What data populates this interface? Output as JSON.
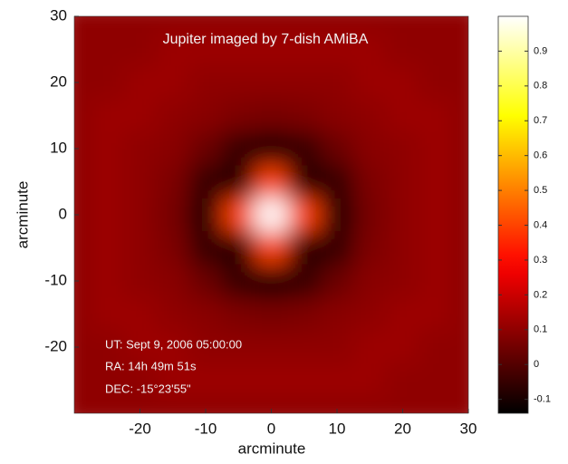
{
  "chart_data": {
    "type": "heatmap",
    "title": "Jupiter imaged by 7-dish AMiBA",
    "x_label": "arcminute",
    "y_label": "arcminute",
    "annotations": [
      "UT: Sept 9, 2006  05:00:00",
      "RA: 14h 49m 51s",
      "DEC: -15°23'55\""
    ],
    "colormap": "hot",
    "x": [
      -30,
      -25,
      -20,
      -15,
      -10,
      -5,
      0,
      5,
      10,
      15,
      20,
      25,
      30
    ],
    "y": [
      30,
      25,
      20,
      15,
      10,
      5,
      0,
      -5,
      -10,
      -15,
      -20,
      -25,
      -30
    ],
    "z": [
      [
        0.1,
        0.1,
        0.1,
        0.1,
        0.1,
        0.1,
        0.1,
        0.1,
        0.1,
        0.1,
        0.1,
        0.1,
        0.1
      ],
      [
        0.1,
        0.1,
        0.1,
        0.12,
        0.12,
        0.12,
        0.12,
        0.12,
        0.12,
        0.12,
        0.1,
        0.1,
        0.1
      ],
      [
        0.1,
        0.1,
        0.12,
        0.12,
        0.1,
        0.1,
        0.1,
        0.1,
        0.1,
        0.12,
        0.12,
        0.1,
        0.1
      ],
      [
        0.1,
        0.12,
        0.12,
        0.1,
        0.09,
        0.07,
        0.06,
        0.07,
        0.09,
        0.1,
        0.12,
        0.12,
        0.1
      ],
      [
        0.1,
        0.12,
        0.1,
        0.09,
        0.04,
        -0.05,
        -0.1,
        -0.05,
        0.04,
        0.09,
        0.1,
        0.12,
        0.1
      ],
      [
        0.1,
        0.12,
        0.1,
        0.07,
        -0.05,
        -0.08,
        0.4,
        -0.08,
        -0.05,
        0.07,
        0.1,
        0.12,
        0.1
      ],
      [
        0.1,
        0.12,
        0.1,
        0.06,
        -0.1,
        0.4,
        1.0,
        0.4,
        -0.1,
        0.06,
        0.1,
        0.12,
        0.1
      ],
      [
        0.1,
        0.12,
        0.1,
        0.07,
        -0.05,
        -0.08,
        0.4,
        -0.08,
        -0.05,
        0.07,
        0.1,
        0.12,
        0.1
      ],
      [
        0.1,
        0.12,
        0.1,
        0.09,
        0.04,
        -0.05,
        -0.1,
        -0.05,
        0.04,
        0.09,
        0.1,
        0.12,
        0.1
      ],
      [
        0.1,
        0.12,
        0.12,
        0.1,
        0.09,
        0.07,
        0.06,
        0.07,
        0.09,
        0.1,
        0.12,
        0.12,
        0.1
      ],
      [
        0.1,
        0.1,
        0.12,
        0.12,
        0.1,
        0.1,
        0.1,
        0.1,
        0.1,
        0.12,
        0.12,
        0.1,
        0.1
      ],
      [
        0.1,
        0.1,
        0.1,
        0.12,
        0.12,
        0.12,
        0.12,
        0.12,
        0.12,
        0.12,
        0.1,
        0.1,
        0.1
      ],
      [
        0.1,
        0.1,
        0.1,
        0.1,
        0.1,
        0.1,
        0.1,
        0.1,
        0.1,
        0.1,
        0.1,
        0.1,
        0.1
      ]
    ],
    "xlim": [
      -30,
      30
    ],
    "ylim": [
      -30,
      30
    ],
    "xticks": [
      -20,
      -10,
      0,
      10,
      20,
      30
    ],
    "yticks": [
      30,
      20,
      10,
      0,
      -10,
      -20
    ],
    "clim": [
      -0.14,
      1.0
    ],
    "colorbar_ticks": [
      0.9,
      0.8,
      0.7,
      0.6,
      0.5,
      0.4,
      0.3,
      0.2,
      0.1,
      0,
      -0.1
    ]
  }
}
